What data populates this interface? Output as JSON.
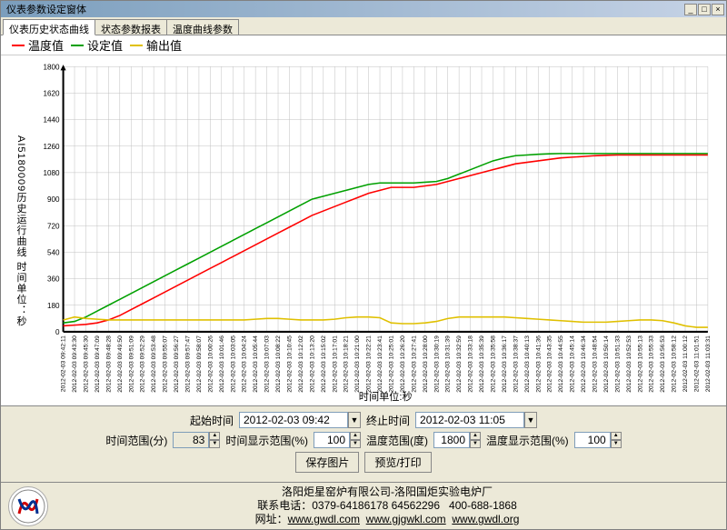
{
  "window": {
    "title": "仪表参数设定窗体"
  },
  "tabs": [
    {
      "label": "仪表历史状态曲线",
      "active": true
    },
    {
      "label": "状态参数报表",
      "active": false
    },
    {
      "label": "温度曲线参数",
      "active": false
    }
  ],
  "legend": [
    {
      "label": "温度值",
      "color": "#ff0000"
    },
    {
      "label": "设定值",
      "color": "#00a000"
    },
    {
      "label": "输出值",
      "color": "#e0c000"
    }
  ],
  "chart": {
    "type": "line",
    "ylabel": "AI5180009历史运行曲线 时间单位：秒",
    "xlabel": "时间单位:秒",
    "background_color": "#ffffff",
    "grid_color": "#c0c0c0",
    "axis_color": "#000000",
    "ylim": [
      0,
      1800
    ],
    "ytick_step": 180,
    "yticks": [
      0,
      180,
      360,
      540,
      720,
      900,
      1080,
      1260,
      1440,
      1620,
      1800
    ],
    "xticks": [
      "2012-02-03 09:42:11",
      "2012-02-03 09:43:30",
      "2012-02-03 09:45:30",
      "2012-02-03 09:47:09",
      "2012-02-03 09:48:28",
      "2012-02-03 09:49:50",
      "2012-02-03 09:51:09",
      "2012-02-03 09:52:29",
      "2012-02-03 09:53:48",
      "2012-02-03 09:55:07",
      "2012-02-03 09:56:27",
      "2012-02-03 09:57:47",
      "2012-02-03 09:58:07",
      "2012-02-03 10:00:26",
      "2012-02-03 10:01:46",
      "2012-02-03 10:03:05",
      "2012-02-03 10:04:24",
      "2012-02-03 10:05:44",
      "2012-02-03 10:07:03",
      "2012-02-03 10:08:22",
      "2012-02-03 10:10:45",
      "2012-02-03 10:12:02",
      "2012-02-03 10:13:20",
      "2012-02-03 10:15:02",
      "2012-02-03 10:17:01",
      "2012-02-03 10:18:21",
      "2012-02-03 10:21:00",
      "2012-02-03 10:22:21",
      "2012-02-03 10:23:41",
      "2012-02-03 10:25:01",
      "2012-02-03 10:26:20",
      "2012-02-03 10:27:41",
      "2012-02-03 10:28:00",
      "2012-02-03 10:30:19",
      "2012-02-03 10:31:39",
      "2012-02-03 10:32:59",
      "2012-02-03 10:33:18",
      "2012-02-03 10:35:39",
      "2012-02-03 10:35:58",
      "2012-02-03 10:36:17",
      "2012-02-03 10:38:37",
      "2012-02-03 10:40:13",
      "2012-02-03 10:41:36",
      "2012-02-03 10:43:35",
      "2012-02-03 10:44:55",
      "2012-02-03 10:45:14",
      "2012-02-03 10:46:34",
      "2012-02-03 10:48:54",
      "2012-02-03 10:50:14",
      "2012-02-03 10:51:33",
      "2012-02-03 10:52:53",
      "2012-02-03 10:55:13",
      "2012-02-03 10:55:33",
      "2012-02-03 10:56:53",
      "2012-02-03 10:58:12",
      "2012-02-03 11:00:12",
      "2012-02-03 11:01:51",
      "2012-02-03 11:03:31"
    ],
    "series": {
      "temperature": {
        "color": "#ff0000",
        "line_width": 1.5,
        "values": [
          40,
          45,
          50,
          60,
          80,
          110,
          150,
          190,
          230,
          270,
          310,
          350,
          390,
          430,
          470,
          510,
          550,
          590,
          630,
          670,
          710,
          750,
          790,
          820,
          850,
          880,
          910,
          940,
          960,
          980,
          980,
          980,
          990,
          1000,
          1020,
          1040,
          1060,
          1080,
          1100,
          1120,
          1140,
          1150,
          1160,
          1170,
          1180,
          1185,
          1190,
          1195,
          1198,
          1200,
          1200,
          1200,
          1200,
          1200,
          1200,
          1200,
          1200,
          1200
        ]
      },
      "setpoint": {
        "color": "#00a000",
        "line_width": 1.5,
        "values": [
          60,
          70,
          100,
          140,
          180,
          220,
          260,
          300,
          340,
          380,
          420,
          460,
          500,
          540,
          580,
          620,
          660,
          700,
          740,
          780,
          820,
          860,
          900,
          920,
          940,
          960,
          980,
          1000,
          1010,
          1010,
          1010,
          1010,
          1015,
          1020,
          1040,
          1070,
          1100,
          1130,
          1160,
          1180,
          1195,
          1200,
          1205,
          1208,
          1210,
          1210,
          1210,
          1210,
          1210,
          1210,
          1210,
          1210,
          1210,
          1210,
          1210,
          1210,
          1210,
          1210
        ]
      },
      "output": {
        "color": "#e0c000",
        "line_width": 1.5,
        "values": [
          80,
          100,
          90,
          85,
          80,
          80,
          80,
          80,
          80,
          80,
          80,
          80,
          80,
          80,
          80,
          80,
          80,
          85,
          90,
          90,
          85,
          80,
          80,
          80,
          85,
          95,
          100,
          100,
          95,
          60,
          55,
          55,
          60,
          70,
          90,
          100,
          100,
          100,
          100,
          100,
          95,
          90,
          85,
          80,
          75,
          70,
          65,
          65,
          65,
          70,
          75,
          80,
          80,
          75,
          60,
          40,
          30,
          30
        ]
      }
    }
  },
  "controls": {
    "start_label": "起始时间",
    "start_value": "2012-02-03 09:42",
    "end_label": "终止时间",
    "end_value": "2012-02-03 11:05",
    "time_range_label": "时间范围(分)",
    "time_range_value": "83",
    "time_disp_label": "时间显示范围(%)",
    "time_disp_value": "100",
    "temp_range_label": "温度范围(度)",
    "temp_range_value": "1800",
    "temp_disp_label": "温度显示范围(%)",
    "temp_disp_value": "100",
    "save_btn": "保存图片",
    "print_btn": "预览/打印"
  },
  "footer": {
    "line1": "洛阳炬星窑炉有限公司-洛阳国炬实验电炉厂",
    "line2_a": "联系电话：0379-64186178 64562296",
    "line2_b": "400-688-1868",
    "line3_a": "网址：",
    "url1": "www.gwdl.com",
    "url2": "www.gjgwkl.com",
    "url3": "www.gwdl.org"
  }
}
